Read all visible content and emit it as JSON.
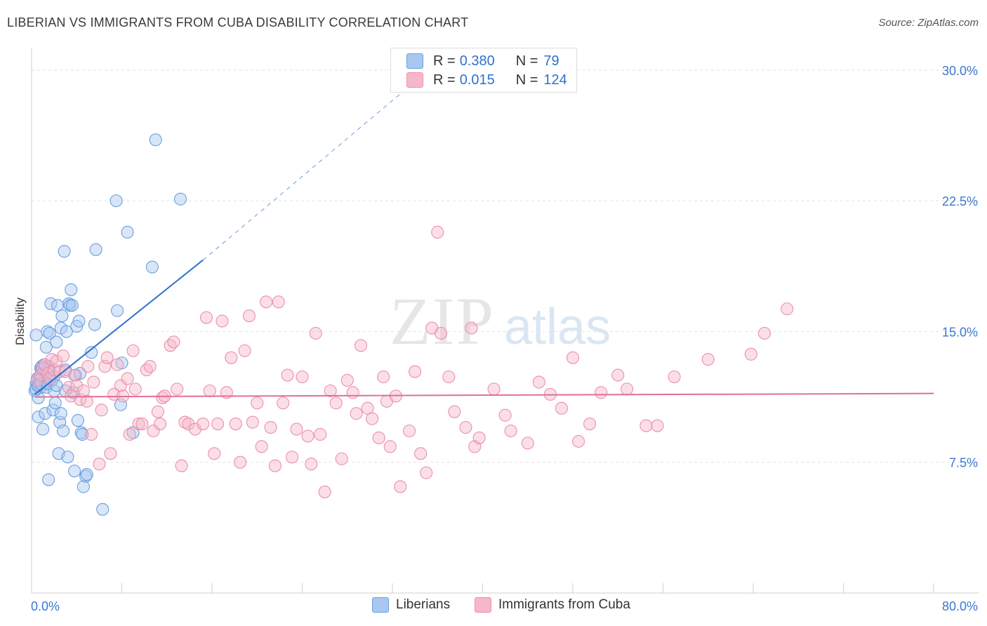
{
  "title": "LIBERIAN VS IMMIGRANTS FROM CUBA DISABILITY CORRELATION CHART",
  "source": "Source: ZipAtlas.com",
  "watermark": {
    "zip": "ZIP",
    "atlas": "atlas"
  },
  "legend_top": {
    "r_label": "R =",
    "n_label": "N =",
    "rows": [
      {
        "r": "0.380",
        "n": "79",
        "color": "#a8c8f0"
      },
      {
        "r": "0.015",
        "n": "124",
        "color": "#f6b8c8"
      }
    ]
  },
  "chart_data": {
    "type": "scatter",
    "title": "LIBERIAN VS IMMIGRANTS FROM CUBA DISABILITY CORRELATION CHART",
    "xlabel": "",
    "ylabel": "Disability",
    "xlim": [
      0,
      80
    ],
    "ylim": [
      0,
      31
    ],
    "x_tick_labels": [
      "0.0%",
      "80.0%"
    ],
    "y_ticks": [
      7.5,
      15.0,
      22.5,
      30.0
    ],
    "y_tick_labels": [
      "7.5%",
      "15.0%",
      "22.5%",
      "30.0%"
    ],
    "grid": true,
    "legend_position": "bottom",
    "series": [
      {
        "name": "Liberians",
        "color": "#6a9fe0",
        "fill": "#a8c8f0",
        "trend": {
          "x0": 0.3,
          "y0": 11.4,
          "x1": 15.2,
          "y1": 19.1,
          "x_dash_end": 33.0,
          "y_dash_end": 28.8,
          "color": "#2f6fd0"
        },
        "points": [
          [
            0.3,
            11.6
          ],
          [
            0.4,
            12.0
          ],
          [
            0.5,
            11.9
          ],
          [
            0.4,
            14.8
          ],
          [
            0.6,
            10.1
          ],
          [
            0.6,
            11.2
          ],
          [
            0.7,
            12.4
          ],
          [
            0.8,
            11.8
          ],
          [
            0.8,
            12.9
          ],
          [
            0.9,
            13.0
          ],
          [
            1.0,
            9.4
          ],
          [
            1.0,
            12.6
          ],
          [
            1.1,
            12.2
          ],
          [
            1.2,
            10.3
          ],
          [
            1.3,
            11.8
          ],
          [
            1.3,
            14.1
          ],
          [
            1.4,
            15.0
          ],
          [
            1.5,
            13.0
          ],
          [
            1.5,
            6.5
          ],
          [
            1.6,
            14.9
          ],
          [
            1.7,
            16.6
          ],
          [
            1.8,
            12.2
          ],
          [
            1.9,
            10.5
          ],
          [
            2.0,
            11.6
          ],
          [
            2.1,
            10.9
          ],
          [
            2.2,
            14.4
          ],
          [
            2.3,
            16.5
          ],
          [
            2.4,
            8.0
          ],
          [
            2.5,
            9.8
          ],
          [
            2.6,
            10.3
          ],
          [
            2.6,
            15.2
          ],
          [
            2.7,
            15.9
          ],
          [
            2.8,
            9.3
          ],
          [
            2.9,
            19.6
          ],
          [
            3.0,
            11.6
          ],
          [
            3.1,
            15.0
          ],
          [
            3.2,
            7.8
          ],
          [
            3.3,
            16.6
          ],
          [
            3.4,
            16.5
          ],
          [
            3.5,
            17.4
          ],
          [
            3.6,
            16.5
          ],
          [
            3.7,
            11.5
          ],
          [
            3.8,
            7.0
          ],
          [
            3.9,
            12.5
          ],
          [
            4.0,
            15.3
          ],
          [
            4.1,
            9.9
          ],
          [
            4.2,
            15.6
          ],
          [
            4.3,
            12.6
          ],
          [
            4.4,
            9.2
          ],
          [
            4.5,
            9.1
          ],
          [
            4.6,
            6.1
          ],
          [
            4.8,
            6.7
          ],
          [
            4.9,
            6.8
          ],
          [
            5.3,
            13.8
          ],
          [
            5.6,
            15.4
          ],
          [
            5.7,
            19.7
          ],
          [
            6.3,
            4.8
          ],
          [
            7.5,
            22.5
          ],
          [
            7.6,
            16.2
          ],
          [
            7.9,
            10.8
          ],
          [
            8.0,
            13.2
          ],
          [
            8.5,
            20.7
          ],
          [
            9.0,
            9.2
          ],
          [
            10.7,
            18.7
          ],
          [
            11.0,
            26.0
          ],
          [
            13.2,
            22.6
          ],
          [
            0.5,
            12.3
          ],
          [
            0.9,
            12.8
          ],
          [
            1.2,
            12.1
          ],
          [
            1.6,
            12.7
          ],
          [
            0.4,
            11.7
          ],
          [
            0.7,
            12.2
          ],
          [
            1.1,
            13.1
          ],
          [
            2.0,
            12.4
          ],
          [
            3.0,
            12.8
          ],
          [
            0.6,
            11.9
          ],
          [
            0.8,
            12.0
          ],
          [
            1.4,
            12.0
          ],
          [
            2.2,
            11.9
          ]
        ]
      },
      {
        "name": "Immigrants from Cuba",
        "color": "#ec8fad",
        "fill": "#f6b8c8",
        "trend": {
          "x0": 0.3,
          "y0": 11.25,
          "x1": 80.0,
          "y1": 11.45,
          "color": "#e07098"
        },
        "points": [
          [
            0.5,
            12.2
          ],
          [
            0.8,
            12.5
          ],
          [
            1.0,
            12.9
          ],
          [
            1.2,
            13.1
          ],
          [
            1.4,
            12.6
          ],
          [
            1.6,
            12.3
          ],
          [
            1.8,
            13.4
          ],
          [
            2.0,
            12.8
          ],
          [
            2.2,
            13.3
          ],
          [
            2.5,
            12.7
          ],
          [
            2.8,
            13.6
          ],
          [
            3.0,
            12.7
          ],
          [
            3.3,
            11.8
          ],
          [
            3.5,
            11.3
          ],
          [
            3.8,
            12.5
          ],
          [
            4.0,
            11.9
          ],
          [
            4.3,
            11.1
          ],
          [
            4.6,
            11.6
          ],
          [
            4.9,
            11.0
          ],
          [
            5.0,
            13.0
          ],
          [
            5.3,
            9.1
          ],
          [
            5.5,
            12.1
          ],
          [
            6.0,
            7.4
          ],
          [
            6.2,
            10.5
          ],
          [
            6.5,
            13.0
          ],
          [
            6.7,
            13.5
          ],
          [
            7.0,
            8.0
          ],
          [
            7.3,
            11.4
          ],
          [
            7.6,
            13.1
          ],
          [
            7.9,
            11.9
          ],
          [
            8.1,
            11.3
          ],
          [
            8.5,
            12.3
          ],
          [
            8.7,
            9.1
          ],
          [
            9.0,
            13.9
          ],
          [
            9.2,
            11.7
          ],
          [
            9.5,
            9.7
          ],
          [
            9.8,
            9.7
          ],
          [
            10.2,
            12.8
          ],
          [
            10.5,
            13.0
          ],
          [
            10.8,
            9.3
          ],
          [
            11.2,
            10.4
          ],
          [
            11.4,
            9.7
          ],
          [
            11.6,
            11.2
          ],
          [
            11.8,
            11.3
          ],
          [
            12.3,
            14.2
          ],
          [
            12.6,
            14.4
          ],
          [
            12.9,
            11.7
          ],
          [
            13.3,
            7.3
          ],
          [
            13.6,
            9.8
          ],
          [
            13.9,
            9.7
          ],
          [
            14.5,
            9.4
          ],
          [
            15.2,
            9.7
          ],
          [
            15.5,
            15.8
          ],
          [
            15.8,
            11.6
          ],
          [
            16.2,
            8.0
          ],
          [
            16.5,
            9.7
          ],
          [
            16.9,
            15.6
          ],
          [
            17.3,
            11.5
          ],
          [
            17.7,
            13.5
          ],
          [
            18.1,
            9.7
          ],
          [
            18.5,
            7.5
          ],
          [
            18.9,
            13.9
          ],
          [
            19.3,
            15.9
          ],
          [
            19.6,
            9.8
          ],
          [
            20.0,
            10.9
          ],
          [
            20.4,
            8.4
          ],
          [
            20.8,
            16.7
          ],
          [
            21.2,
            9.5
          ],
          [
            21.6,
            7.3
          ],
          [
            21.9,
            16.7
          ],
          [
            22.3,
            10.9
          ],
          [
            22.7,
            12.5
          ],
          [
            23.1,
            7.8
          ],
          [
            23.5,
            9.4
          ],
          [
            24.0,
            12.4
          ],
          [
            24.5,
            9.0
          ],
          [
            24.8,
            7.4
          ],
          [
            25.2,
            14.9
          ],
          [
            25.6,
            9.1
          ],
          [
            26.5,
            11.6
          ],
          [
            27.0,
            10.9
          ],
          [
            27.5,
            7.7
          ],
          [
            28.0,
            12.2
          ],
          [
            28.5,
            11.5
          ],
          [
            28.8,
            10.3
          ],
          [
            29.2,
            14.2
          ],
          [
            29.8,
            10.6
          ],
          [
            30.2,
            10.0
          ],
          [
            30.8,
            8.9
          ],
          [
            31.2,
            12.4
          ],
          [
            31.5,
            11.0
          ],
          [
            31.8,
            8.4
          ],
          [
            32.3,
            11.3
          ],
          [
            32.7,
            6.1
          ],
          [
            33.5,
            9.3
          ],
          [
            34.0,
            12.7
          ],
          [
            34.5,
            8.0
          ],
          [
            35.0,
            6.9
          ],
          [
            35.5,
            15.2
          ],
          [
            36.0,
            20.7
          ],
          [
            36.3,
            14.9
          ],
          [
            37.0,
            12.4
          ],
          [
            37.5,
            10.4
          ],
          [
            38.5,
            9.5
          ],
          [
            39.0,
            15.2
          ],
          [
            39.3,
            8.4
          ],
          [
            39.7,
            8.9
          ],
          [
            41.0,
            11.7
          ],
          [
            42.0,
            10.2
          ],
          [
            42.5,
            9.3
          ],
          [
            44.0,
            8.6
          ],
          [
            45.0,
            12.1
          ],
          [
            46.0,
            11.4
          ],
          [
            47.0,
            10.6
          ],
          [
            48.0,
            13.5
          ],
          [
            48.5,
            8.7
          ],
          [
            49.5,
            9.7
          ],
          [
            50.5,
            11.5
          ],
          [
            52.0,
            12.5
          ],
          [
            52.8,
            11.7
          ],
          [
            54.5,
            9.6
          ],
          [
            55.5,
            9.6
          ],
          [
            57.0,
            12.4
          ],
          [
            60.0,
            13.4
          ],
          [
            63.8,
            13.7
          ],
          [
            65.0,
            14.9
          ],
          [
            67.0,
            16.3
          ],
          [
            26.0,
            5.8
          ]
        ]
      }
    ]
  },
  "bottom_legend": {
    "items": [
      {
        "label": "Liberians",
        "color": "#a8c8f0",
        "border": "#6a9fe0"
      },
      {
        "label": "Immigrants from Cuba",
        "color": "#f6b8c8",
        "border": "#ec8fad"
      }
    ]
  }
}
